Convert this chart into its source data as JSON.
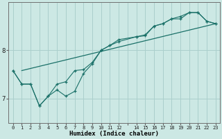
{
  "xlabel": "Humidex (Indice chaleur)",
  "background_color": "#cce8e4",
  "grid_color": "#aacfcc",
  "line_color": "#1a7068",
  "ylim": [
    6.5,
    9.0
  ],
  "yticks": [
    7,
    8
  ],
  "xlim": [
    -0.5,
    23.5
  ],
  "xtick_vals": [
    0,
    1,
    2,
    3,
    4,
    5,
    6,
    7,
    8,
    9,
    10,
    11,
    12,
    13,
    14,
    15,
    16,
    17,
    18,
    19,
    20,
    21,
    22,
    23
  ],
  "xtick_labels": [
    "0",
    "1",
    "2",
    "3",
    "4",
    "5",
    "6",
    "7",
    "8",
    "9",
    "10",
    "11",
    "12",
    "",
    "14",
    "15",
    "16",
    "17",
    "18",
    "19",
    "20",
    "21",
    "22",
    "23"
  ],
  "line1_x": [
    1,
    23
  ],
  "line1_y": [
    7.58,
    8.55
  ],
  "line2_x": [
    0,
    1,
    2,
    3,
    4,
    5,
    6,
    7,
    8,
    9,
    10,
    11,
    12,
    14,
    15,
    16,
    17,
    18,
    19,
    20,
    21,
    22,
    23
  ],
  "line2_y": [
    7.58,
    7.3,
    7.3,
    6.85,
    7.05,
    7.3,
    7.35,
    7.58,
    7.6,
    7.75,
    8.0,
    8.1,
    8.22,
    8.28,
    8.32,
    8.5,
    8.55,
    8.65,
    8.65,
    8.78,
    8.78,
    8.6,
    8.55
  ],
  "line3_x": [
    0,
    1,
    2,
    3,
    4,
    5,
    6,
    7,
    8,
    9,
    10,
    11,
    12,
    14,
    15,
    16,
    17,
    18,
    19,
    20,
    21,
    22,
    23
  ],
  "line3_y": [
    7.58,
    7.3,
    7.3,
    6.85,
    7.05,
    7.18,
    7.05,
    7.15,
    7.52,
    7.72,
    8.0,
    8.1,
    8.18,
    8.28,
    8.3,
    8.5,
    8.55,
    8.65,
    8.7,
    8.78,
    8.78,
    8.6,
    8.55
  ]
}
